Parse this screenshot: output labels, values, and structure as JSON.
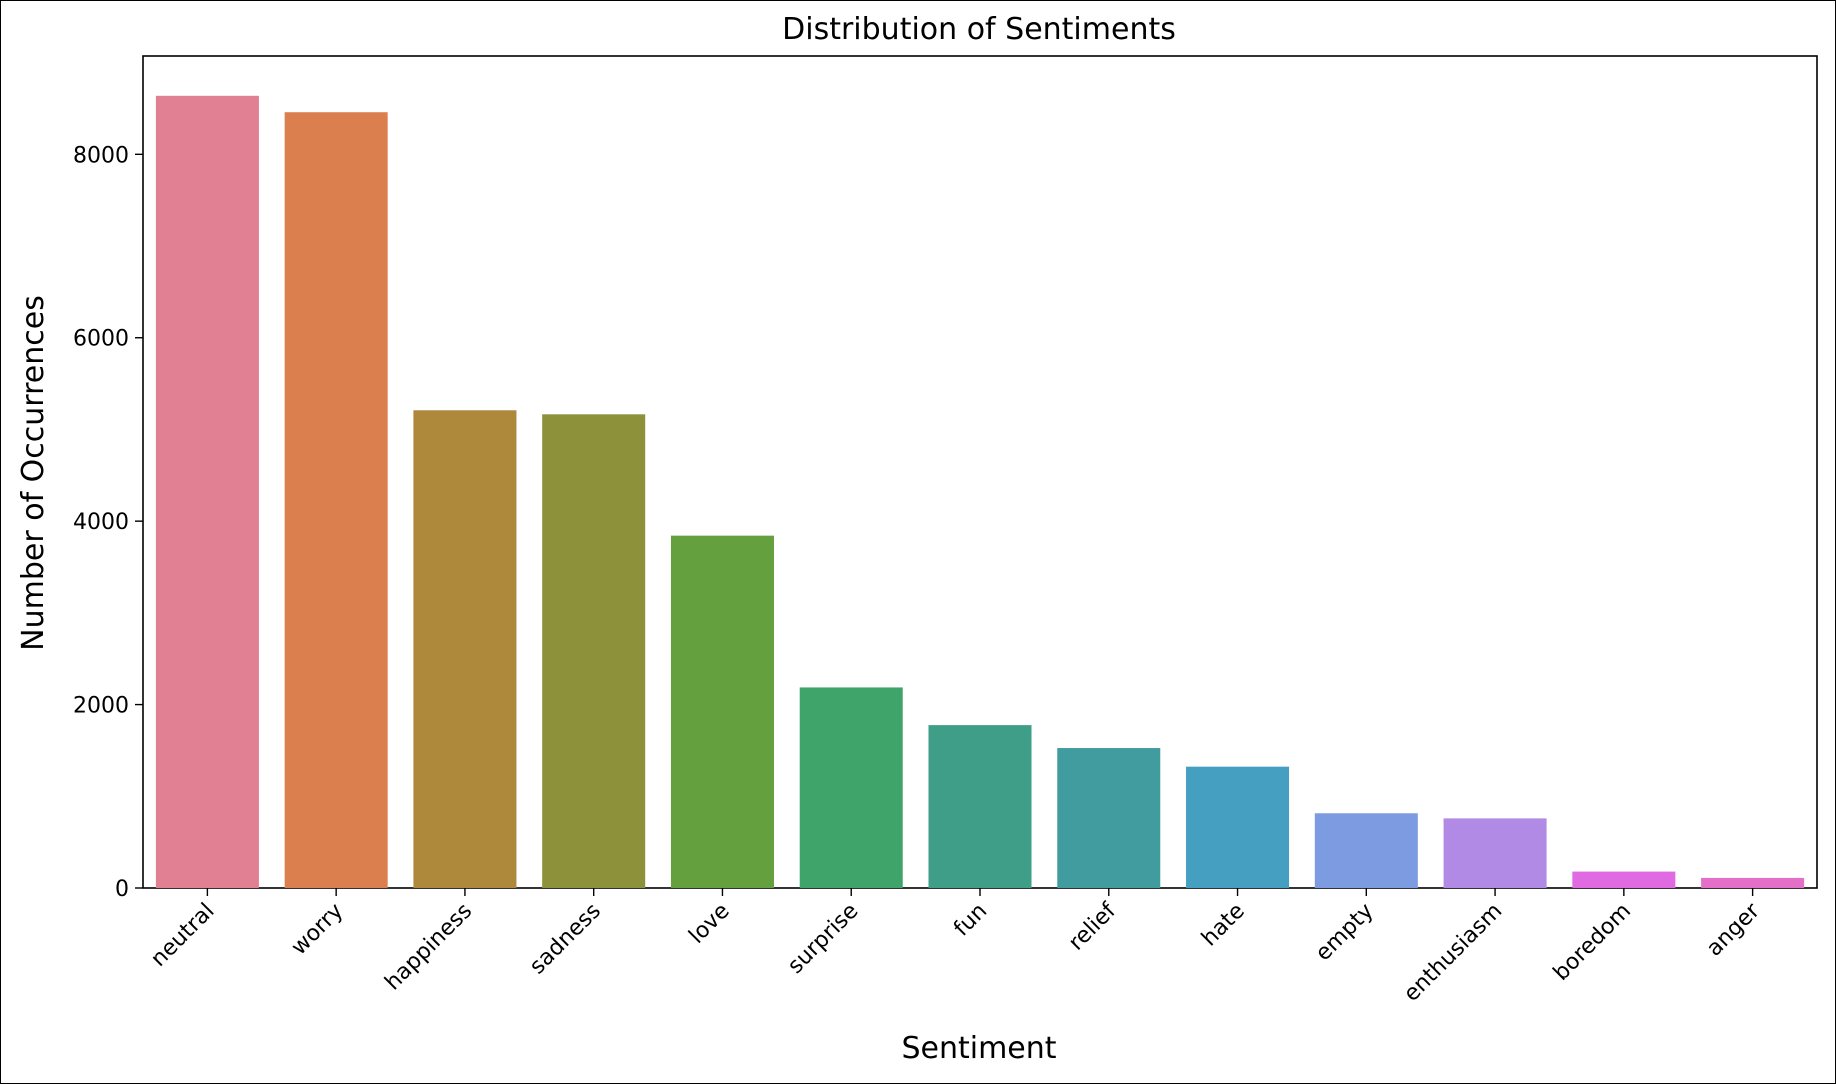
{
  "chart_data": {
    "type": "bar",
    "title": "Distribution of Sentiments",
    "xlabel": "Sentiment",
    "ylabel": "Number of Occurrences",
    "ylim": [
      0,
      9072
    ],
    "yticks": [
      0,
      2000,
      4000,
      6000,
      8000
    ],
    "grid": false,
    "categories": [
      "neutral",
      "worry",
      "happiness",
      "sadness",
      "love",
      "surprise",
      "fun",
      "relief",
      "hate",
      "empty",
      "enthusiasm",
      "boredom",
      "anger"
    ],
    "values": [
      8638,
      8459,
      5209,
      5165,
      3842,
      2187,
      1776,
      1526,
      1323,
      815,
      759,
      179,
      110
    ],
    "colors": [
      "#e17f93",
      "#dc7f4e",
      "#ae893b",
      "#8c913a",
      "#64a03d",
      "#3ea46a",
      "#3f9e88",
      "#409c9e",
      "#449fc1",
      "#7d9be0",
      "#b18ae5",
      "#e06ae2",
      "#e46fc9"
    ]
  }
}
